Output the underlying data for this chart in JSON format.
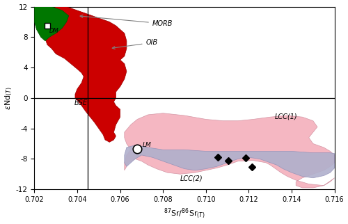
{
  "xlim": [
    0.702,
    0.716
  ],
  "ylim": [
    -12,
    12
  ],
  "xlabel": "$^{87}$Sr/$^{86}$Sr$_{(T)}$",
  "ylabel": "$\\varepsilon$Nd$_{(T)}$",
  "xticks": [
    0.702,
    0.704,
    0.706,
    0.708,
    0.71,
    0.712,
    0.714,
    0.716
  ],
  "yticks": [
    -12,
    -8,
    -4,
    0,
    4,
    8,
    12
  ],
  "vline_x": 0.7045,
  "hline_y": 0,
  "dm_point": [
    0.7026,
    9.5
  ],
  "lm_point": [
    0.7068,
    -6.7
  ],
  "data_points": [
    [
      0.71055,
      -7.8
    ],
    [
      0.71105,
      -8.25
    ],
    [
      0.71185,
      -7.85
    ],
    [
      0.71215,
      -9.1
    ]
  ],
  "background_color": "#ffffff",
  "morb_oib_color": "#cc0000",
  "dm_color": "#007700",
  "lcc1_color": "#f4b0bc",
  "lcc2_color": "#b0b0cc"
}
